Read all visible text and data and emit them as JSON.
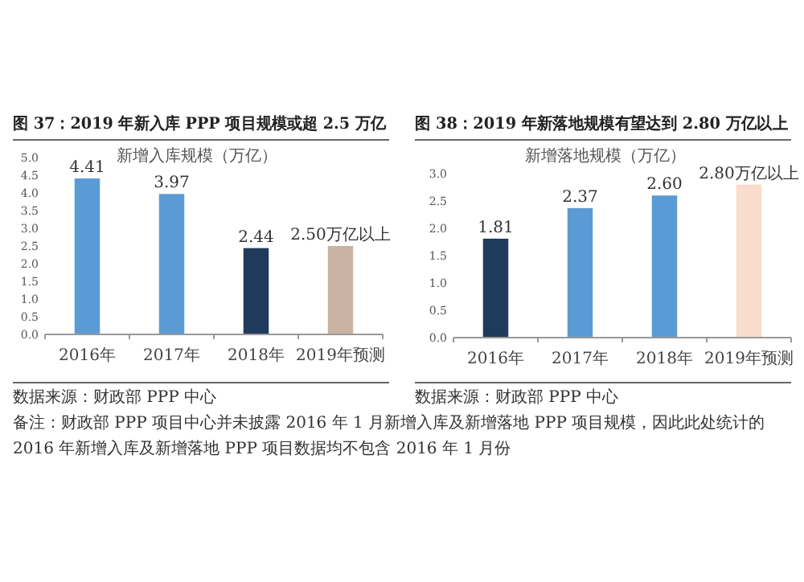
{
  "chart_data": [
    {
      "type": "bar",
      "title": "图 37：2019 年新入库 PPP 项目规模或超 2.5 万亿",
      "subtitle": "新增入库规模（万亿）",
      "categories": [
        "2016年",
        "2017年",
        "2018年",
        "2019年预测"
      ],
      "values": [
        4.41,
        3.97,
        2.44,
        2.5
      ],
      "colors": [
        "#5b9bd5",
        "#5b9bd5",
        "#1f3a5a",
        "#c9b2a2"
      ],
      "value_labels": [
        "4.41",
        "3.97",
        "2.44",
        "2.50万亿以上"
      ],
      "ylim": [
        0,
        5
      ],
      "yticks": [
        {
          "value": 0,
          "label": "0.0"
        },
        {
          "value": 0.5,
          "label": "0.5"
        },
        {
          "value": 1,
          "label": "1.0"
        },
        {
          "value": 1.5,
          "label": "1.5"
        },
        {
          "value": 2,
          "label": "2.0"
        },
        {
          "value": 2.5,
          "label": "2.5"
        },
        {
          "value": 3,
          "label": "3.0"
        },
        {
          "value": 3.5,
          "label": "3.5"
        },
        {
          "value": 4,
          "label": "4.0"
        },
        {
          "value": 4.5,
          "label": "4.5"
        },
        {
          "value": 5,
          "label": "5.0"
        }
      ],
      "annotations": [
        "数据来源：财政部 PPP 中心"
      ]
    },
    {
      "type": "bar",
      "title": "图 38：2019 年新落地规模有望达到 2.80 万亿以上",
      "subtitle": "新增落地规模（万亿）",
      "categories": [
        "2016年",
        "2017年",
        "2018年",
        "2019年预测"
      ],
      "values": [
        1.81,
        2.37,
        2.6,
        2.8
      ],
      "colors": [
        "#1f3a5a",
        "#5b9bd5",
        "#5b9bd5",
        "#f9dccb"
      ],
      "value_labels": [
        "1.81",
        "2.37",
        "2.60",
        "2.80万亿以上"
      ],
      "ylim": [
        0,
        3
      ],
      "yticks": [
        {
          "value": 0,
          "label": "0.0"
        },
        {
          "value": 0.5,
          "label": "0.5"
        },
        {
          "value": 1,
          "label": "1.0"
        },
        {
          "value": 1.5,
          "label": "1.5"
        },
        {
          "value": 2,
          "label": "2.0"
        },
        {
          "value": 2.5,
          "label": "2.5"
        },
        {
          "value": 3,
          "label": "3.0"
        }
      ],
      "annotations": [
        "数据来源：财政部 PPP 中心",
        "备注：财政部 PPP 项目中心并未披露 2016 年 1 月新增入库及新增落地 PPP 项目规模，因此此处统计的 2016 年新增入库及新增落地 PPP 项目数据均不包含 2016 年 1 月份"
      ]
    }
  ]
}
